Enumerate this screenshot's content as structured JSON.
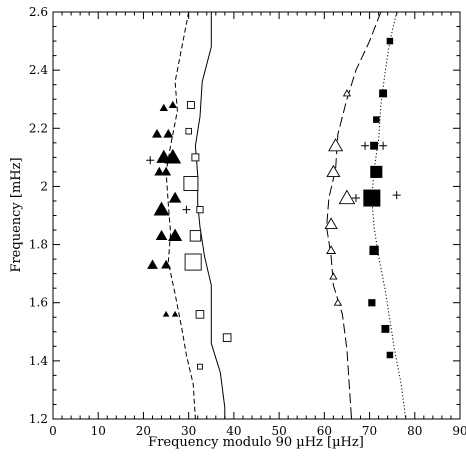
{
  "chart_data": {
    "type": "scatter",
    "title": "",
    "xlabel": "Frequency modulo 90 µHz [µHz]",
    "ylabel": "Frequency [mHz]",
    "xlim": [
      0,
      90
    ],
    "ylim": [
      1.2,
      2.6
    ],
    "xticks": [
      0,
      10,
      20,
      30,
      40,
      50,
      60,
      70,
      80,
      90
    ],
    "yticks": [
      1.2,
      1.4,
      1.6,
      1.8,
      2,
      2.2,
      2.4,
      2.6
    ],
    "xtick_labels": [
      "0",
      "10",
      "20",
      "30",
      "40",
      "50",
      "60",
      "70",
      "80",
      "90"
    ],
    "ytick_labels": [
      "1.2",
      "1.4",
      "1.6",
      "1.8",
      "2",
      "2.2",
      "2.4",
      "2.6"
    ],
    "grid": false,
    "legend": "none",
    "series": [
      {
        "marker": "filled-triangle",
        "points": [
          {
            "x": 24.5,
            "y": 2.27,
            "s": 0.8
          },
          {
            "x": 26.5,
            "y": 2.28,
            "s": 0.8
          },
          {
            "x": 23,
            "y": 2.18,
            "s": 1.0
          },
          {
            "x": 25.5,
            "y": 2.18,
            "s": 1.0
          },
          {
            "x": 24.5,
            "y": 2.1,
            "s": 1.6
          },
          {
            "x": 26.5,
            "y": 2.1,
            "s": 1.8
          },
          {
            "x": 23.5,
            "y": 2.05,
            "s": 1.0
          },
          {
            "x": 25,
            "y": 2.05,
            "s": 1.0
          },
          {
            "x": 24,
            "y": 1.92,
            "s": 1.7
          },
          {
            "x": 27,
            "y": 1.96,
            "s": 1.3
          },
          {
            "x": 24,
            "y": 1.83,
            "s": 1.2
          },
          {
            "x": 27,
            "y": 1.83,
            "s": 1.5
          },
          {
            "x": 22,
            "y": 1.73,
            "s": 1.1
          },
          {
            "x": 25,
            "y": 1.73,
            "s": 1.0
          },
          {
            "x": 25,
            "y": 1.56,
            "s": 0.6
          },
          {
            "x": 27,
            "y": 1.56,
            "s": 0.6
          }
        ]
      },
      {
        "marker": "open-square",
        "points": [
          {
            "x": 30.5,
            "y": 2.28,
            "s": 1.0
          },
          {
            "x": 30,
            "y": 2.19,
            "s": 0.8
          },
          {
            "x": 31.5,
            "y": 2.1,
            "s": 1.0
          },
          {
            "x": 30.5,
            "y": 2.01,
            "s": 2.0
          },
          {
            "x": 32.5,
            "y": 1.92,
            "s": 0.9
          },
          {
            "x": 31.5,
            "y": 1.83,
            "s": 1.5
          },
          {
            "x": 31,
            "y": 1.74,
            "s": 2.3
          },
          {
            "x": 32.5,
            "y": 1.56,
            "s": 1.1
          },
          {
            "x": 38.5,
            "y": 1.48,
            "s": 1.1
          },
          {
            "x": 32.5,
            "y": 1.38,
            "s": 0.7
          }
        ]
      },
      {
        "marker": "open-triangle",
        "points": [
          {
            "x": 65,
            "y": 2.32,
            "s": 0.8
          },
          {
            "x": 62.5,
            "y": 2.14,
            "s": 1.6
          },
          {
            "x": 62,
            "y": 2.05,
            "s": 1.5
          },
          {
            "x": 65,
            "y": 1.96,
            "s": 1.8
          },
          {
            "x": 61.5,
            "y": 1.87,
            "s": 1.4
          },
          {
            "x": 61.5,
            "y": 1.78,
            "s": 1.0
          },
          {
            "x": 62,
            "y": 1.69,
            "s": 0.8
          },
          {
            "x": 63,
            "y": 1.6,
            "s": 0.8
          }
        ]
      },
      {
        "marker": "filled-square",
        "points": [
          {
            "x": 74.5,
            "y": 2.5,
            "s": 0.8
          },
          {
            "x": 73,
            "y": 2.32,
            "s": 1.0
          },
          {
            "x": 71.5,
            "y": 2.23,
            "s": 0.8
          },
          {
            "x": 71,
            "y": 2.14,
            "s": 1.0
          },
          {
            "x": 71.5,
            "y": 2.05,
            "s": 1.6
          },
          {
            "x": 70.5,
            "y": 1.96,
            "s": 2.3
          },
          {
            "x": 71,
            "y": 1.78,
            "s": 1.2
          },
          {
            "x": 70.5,
            "y": 1.6,
            "s": 0.9
          },
          {
            "x": 73.5,
            "y": 1.51,
            "s": 1.0
          },
          {
            "x": 74.5,
            "y": 1.42,
            "s": 0.8
          }
        ]
      },
      {
        "marker": "plus",
        "points": [
          {
            "x": 21.5,
            "y": 2.09
          },
          {
            "x": 29.5,
            "y": 1.92
          },
          {
            "x": 69,
            "y": 2.14
          },
          {
            "x": 73,
            "y": 2.14
          },
          {
            "x": 67,
            "y": 1.96
          },
          {
            "x": 76,
            "y": 1.97
          }
        ]
      }
    ],
    "curves": [
      {
        "style": "dashed",
        "points": [
          [
            30,
            2.6
          ],
          [
            28.5,
            2.48
          ],
          [
            27,
            2.36
          ],
          [
            27.5,
            2.26
          ],
          [
            26,
            2.14
          ],
          [
            25,
            2.05
          ],
          [
            25.5,
            1.94
          ],
          [
            26,
            1.84
          ],
          [
            25.5,
            1.74
          ],
          [
            27,
            1.63
          ],
          [
            28.5,
            1.51
          ],
          [
            29.5,
            1.42
          ],
          [
            31,
            1.32
          ],
          [
            31.5,
            1.2
          ]
        ]
      },
      {
        "style": "solid",
        "points": [
          [
            35,
            2.6
          ],
          [
            35,
            2.48
          ],
          [
            33,
            2.36
          ],
          [
            32.5,
            2.24
          ],
          [
            31.5,
            2.14
          ],
          [
            32,
            2.04
          ],
          [
            32,
            1.94
          ],
          [
            32.5,
            1.86
          ],
          [
            33.5,
            1.76
          ],
          [
            35,
            1.66
          ],
          [
            35,
            1.56
          ],
          [
            35,
            1.46
          ],
          [
            37,
            1.36
          ],
          [
            38,
            1.24
          ],
          [
            38,
            1.2
          ]
        ]
      },
      {
        "style": "long-dash",
        "points": [
          [
            72.5,
            2.6
          ],
          [
            70,
            2.5
          ],
          [
            67,
            2.4
          ],
          [
            65,
            2.3
          ],
          [
            63,
            2.18
          ],
          [
            62.5,
            2.06
          ],
          [
            61,
            1.96
          ],
          [
            60.5,
            1.86
          ],
          [
            61.5,
            1.76
          ],
          [
            62,
            1.66
          ],
          [
            64,
            1.56
          ],
          [
            65,
            1.44
          ],
          [
            65.5,
            1.32
          ],
          [
            66,
            1.2
          ]
        ]
      },
      {
        "style": "dotted",
        "points": [
          [
            76,
            2.6
          ],
          [
            74.5,
            2.5
          ],
          [
            73.5,
            2.4
          ],
          [
            72.5,
            2.28
          ],
          [
            72,
            2.16
          ],
          [
            71,
            2.06
          ],
          [
            70.5,
            1.96
          ],
          [
            71,
            1.86
          ],
          [
            72,
            1.76
          ],
          [
            73.5,
            1.64
          ],
          [
            74.5,
            1.54
          ],
          [
            75.5,
            1.44
          ],
          [
            77,
            1.32
          ],
          [
            78,
            1.2
          ]
        ]
      }
    ]
  }
}
